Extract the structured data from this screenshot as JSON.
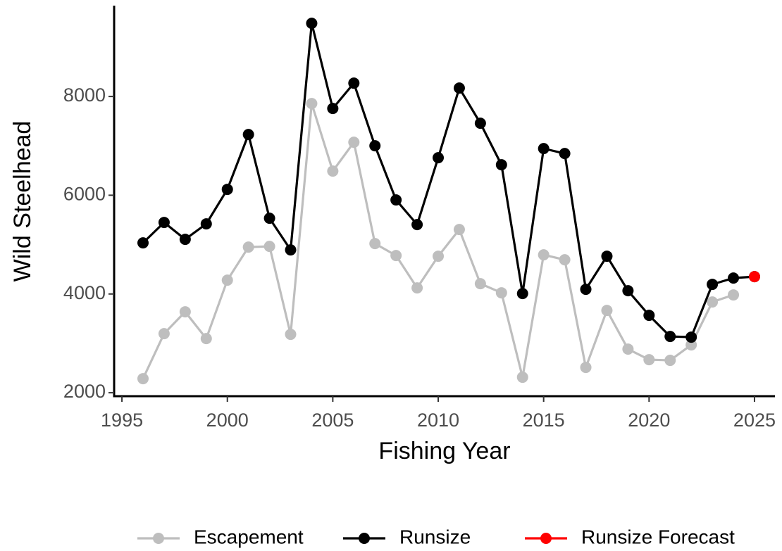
{
  "chart_data": {
    "type": "line",
    "x_label": "Fishing Year",
    "y_label": "Wild Steelhead",
    "x": [
      1996,
      1997,
      1998,
      1999,
      2000,
      2001,
      2002,
      2003,
      2004,
      2005,
      2006,
      2007,
      2008,
      2009,
      2010,
      2011,
      2012,
      2013,
      2014,
      2015,
      2016,
      2017,
      2018,
      2019,
      2020,
      2021,
      2022,
      2023,
      2024,
      2025
    ],
    "series": [
      {
        "name": "Escapement",
        "color": "#bebebe",
        "values": [
          2285,
          3197,
          3639,
          3097,
          4280,
          4950,
          4964,
          3183,
          7857,
          6489,
          7073,
          5021,
          4779,
          4123,
          4765,
          5306,
          4209,
          4024,
          2314,
          4793,
          4693,
          2513,
          3667,
          2884,
          2670,
          2656,
          2969,
          3838,
          3981,
          null
        ]
      },
      {
        "name": "Runsize",
        "color": "#000000",
        "values": [
          5035,
          5449,
          5107,
          5420,
          6119,
          7230,
          5534,
          4893,
          9482,
          7757,
          8270,
          7002,
          5905,
          5406,
          6760,
          8171,
          7458,
          6617,
          4009,
          6945,
          6845,
          4095,
          4765,
          4066,
          3568,
          3140,
          3126,
          4195,
          4323,
          4351
        ]
      },
      {
        "name": "Runsize Forecast",
        "color": "#ff0000",
        "values": [
          null,
          null,
          null,
          null,
          null,
          null,
          null,
          null,
          null,
          null,
          null,
          null,
          null,
          null,
          null,
          null,
          null,
          null,
          null,
          null,
          null,
          null,
          null,
          null,
          null,
          null,
          null,
          null,
          null,
          4351
        ]
      }
    ],
    "xlim": [
      1994.63,
      2025.97
    ],
    "ylim": [
      1930,
      9840
    ],
    "xticks": [
      1995,
      2000,
      2005,
      2010,
      2015,
      2020,
      2025
    ],
    "yticks": [
      2000,
      4000,
      6000,
      8000
    ],
    "legend": "bottom",
    "grid": false
  }
}
